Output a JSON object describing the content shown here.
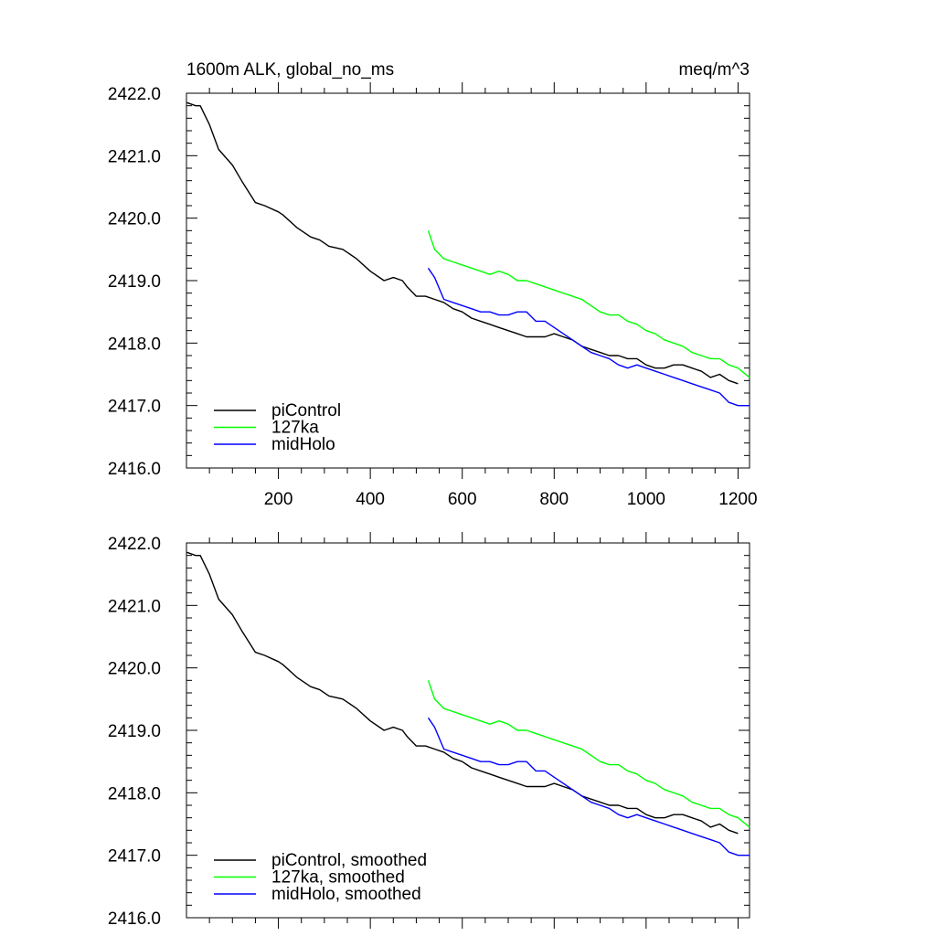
{
  "chart_data": [
    {
      "type": "line",
      "title_left": "1600m ALK, global_no_ms",
      "title_right": "meq/m^3",
      "xlim": [
        0,
        1225
      ],
      "ylim": [
        2416.0,
        2422.0
      ],
      "x_ticks": [
        200,
        400,
        600,
        800,
        1000,
        1200
      ],
      "x_tick_labels": [
        "200",
        "400",
        "600",
        "800",
        "1000",
        "1200"
      ],
      "y_ticks": [
        2416.0,
        2417.0,
        2418.0,
        2419.0,
        2420.0,
        2421.0,
        2422.0
      ],
      "y_tick_labels": [
        "2416.0",
        "2417.0",
        "2418.0",
        "2419.0",
        "2420.0",
        "2421.0",
        "2422.0"
      ],
      "legend_position": "bottom-left",
      "series": [
        {
          "name": "piControl",
          "color": "#000000",
          "x": [
            1,
            20,
            30,
            50,
            70,
            100,
            120,
            150,
            170,
            200,
            210,
            240,
            270,
            290,
            310,
            340,
            370,
            400,
            430,
            450,
            470,
            480,
            500,
            520,
            540,
            560,
            580,
            600,
            620,
            640,
            660,
            680,
            700,
            720,
            740,
            760,
            780,
            800,
            820,
            840,
            860,
            880,
            900,
            920,
            940,
            960,
            980,
            1000,
            1020,
            1040,
            1060,
            1080,
            1100,
            1120,
            1140,
            1160,
            1180,
            1200
          ],
          "values": [
            2421.85,
            2421.8,
            2421.8,
            2421.5,
            2421.1,
            2420.85,
            2420.6,
            2420.25,
            2420.2,
            2420.1,
            2420.05,
            2419.85,
            2419.7,
            2419.65,
            2419.55,
            2419.5,
            2419.35,
            2419.15,
            2419.0,
            2419.05,
            2419.0,
            2418.9,
            2418.75,
            2418.75,
            2418.7,
            2418.65,
            2418.55,
            2418.5,
            2418.4,
            2418.35,
            2418.3,
            2418.25,
            2418.2,
            2418.15,
            2418.1,
            2418.1,
            2418.1,
            2418.15,
            2418.1,
            2418.05,
            2417.95,
            2417.9,
            2417.85,
            2417.8,
            2417.8,
            2417.75,
            2417.75,
            2417.65,
            2417.6,
            2417.6,
            2417.65,
            2417.65,
            2417.6,
            2417.55,
            2417.45,
            2417.5,
            2417.4,
            2417.35
          ]
        },
        {
          "name": "127ka",
          "color": "#00FF00",
          "x": [
            526,
            540,
            560,
            580,
            600,
            620,
            640,
            660,
            680,
            700,
            720,
            740,
            760,
            780,
            800,
            820,
            840,
            860,
            880,
            900,
            920,
            940,
            960,
            980,
            1000,
            1020,
            1040,
            1060,
            1080,
            1100,
            1120,
            1140,
            1160,
            1180,
            1200,
            1225
          ],
          "values": [
            2419.8,
            2419.5,
            2419.35,
            2419.3,
            2419.25,
            2419.2,
            2419.15,
            2419.1,
            2419.15,
            2419.1,
            2419.0,
            2419.0,
            2418.95,
            2418.9,
            2418.85,
            2418.8,
            2418.75,
            2418.7,
            2418.6,
            2418.5,
            2418.45,
            2418.45,
            2418.35,
            2418.3,
            2418.2,
            2418.15,
            2418.05,
            2418.0,
            2417.95,
            2417.85,
            2417.8,
            2417.75,
            2417.75,
            2417.65,
            2417.6,
            2417.45
          ]
        },
        {
          "name": "midHolo",
          "color": "#0000FF",
          "x": [
            526,
            540,
            560,
            580,
            600,
            620,
            640,
            660,
            680,
            700,
            720,
            740,
            760,
            780,
            800,
            820,
            840,
            860,
            880,
            900,
            920,
            940,
            960,
            980,
            1000,
            1020,
            1040,
            1060,
            1080,
            1100,
            1120,
            1140,
            1160,
            1180,
            1200,
            1225
          ],
          "values": [
            2419.2,
            2419.05,
            2418.7,
            2418.65,
            2418.6,
            2418.55,
            2418.5,
            2418.5,
            2418.45,
            2418.45,
            2418.5,
            2418.5,
            2418.35,
            2418.35,
            2418.25,
            2418.15,
            2418.05,
            2417.95,
            2417.85,
            2417.8,
            2417.75,
            2417.65,
            2417.6,
            2417.65,
            2417.6,
            2417.55,
            2417.5,
            2417.45,
            2417.4,
            2417.35,
            2417.3,
            2417.25,
            2417.2,
            2417.05,
            2417.0,
            2417.0
          ]
        }
      ]
    },
    {
      "type": "line",
      "xlim": [
        0,
        1225
      ],
      "ylim": [
        2416.0,
        2422.0
      ],
      "x_ticks": [
        200,
        400,
        600,
        800,
        1000,
        1200
      ],
      "y_ticks": [
        2416.0,
        2417.0,
        2418.0,
        2419.0,
        2420.0,
        2421.0,
        2422.0
      ],
      "y_tick_labels": [
        "2416.0",
        "2417.0",
        "2418.0",
        "2419.0",
        "2420.0",
        "2421.0",
        "2422.0"
      ],
      "legend_position": "bottom-left",
      "series": [
        {
          "name": "piControl, smoothed",
          "color": "#000000",
          "x": [
            1,
            20,
            30,
            50,
            70,
            100,
            120,
            150,
            170,
            200,
            210,
            240,
            270,
            290,
            310,
            340,
            370,
            400,
            430,
            450,
            470,
            480,
            500,
            520,
            540,
            560,
            580,
            600,
            620,
            640,
            660,
            680,
            700,
            720,
            740,
            760,
            780,
            800,
            820,
            840,
            860,
            880,
            900,
            920,
            940,
            960,
            980,
            1000,
            1020,
            1040,
            1060,
            1080,
            1100,
            1120,
            1140,
            1160,
            1180,
            1200
          ],
          "values": [
            2421.85,
            2421.8,
            2421.8,
            2421.5,
            2421.1,
            2420.85,
            2420.6,
            2420.25,
            2420.2,
            2420.1,
            2420.05,
            2419.85,
            2419.7,
            2419.65,
            2419.55,
            2419.5,
            2419.35,
            2419.15,
            2419.0,
            2419.05,
            2419.0,
            2418.9,
            2418.75,
            2418.75,
            2418.7,
            2418.65,
            2418.55,
            2418.5,
            2418.4,
            2418.35,
            2418.3,
            2418.25,
            2418.2,
            2418.15,
            2418.1,
            2418.1,
            2418.1,
            2418.15,
            2418.1,
            2418.05,
            2417.95,
            2417.9,
            2417.85,
            2417.8,
            2417.8,
            2417.75,
            2417.75,
            2417.65,
            2417.6,
            2417.6,
            2417.65,
            2417.65,
            2417.6,
            2417.55,
            2417.45,
            2417.5,
            2417.4,
            2417.35
          ]
        },
        {
          "name": "127ka, smoothed",
          "color": "#00FF00",
          "x": [
            526,
            540,
            560,
            580,
            600,
            620,
            640,
            660,
            680,
            700,
            720,
            740,
            760,
            780,
            800,
            820,
            840,
            860,
            880,
            900,
            920,
            940,
            960,
            980,
            1000,
            1020,
            1040,
            1060,
            1080,
            1100,
            1120,
            1140,
            1160,
            1180,
            1200,
            1225
          ],
          "values": [
            2419.8,
            2419.5,
            2419.35,
            2419.3,
            2419.25,
            2419.2,
            2419.15,
            2419.1,
            2419.15,
            2419.1,
            2419.0,
            2419.0,
            2418.95,
            2418.9,
            2418.85,
            2418.8,
            2418.75,
            2418.7,
            2418.6,
            2418.5,
            2418.45,
            2418.45,
            2418.35,
            2418.3,
            2418.2,
            2418.15,
            2418.05,
            2418.0,
            2417.95,
            2417.85,
            2417.8,
            2417.75,
            2417.75,
            2417.65,
            2417.6,
            2417.45
          ]
        },
        {
          "name": "midHolo, smoothed",
          "color": "#0000FF",
          "x": [
            526,
            540,
            560,
            580,
            600,
            620,
            640,
            660,
            680,
            700,
            720,
            740,
            760,
            780,
            800,
            820,
            840,
            860,
            880,
            900,
            920,
            940,
            960,
            980,
            1000,
            1020,
            1040,
            1060,
            1080,
            1100,
            1120,
            1140,
            1160,
            1180,
            1200,
            1225
          ],
          "values": [
            2419.2,
            2419.05,
            2418.7,
            2418.65,
            2418.6,
            2418.55,
            2418.5,
            2418.5,
            2418.45,
            2418.45,
            2418.5,
            2418.5,
            2418.35,
            2418.35,
            2418.25,
            2418.15,
            2418.05,
            2417.95,
            2417.85,
            2417.8,
            2417.75,
            2417.65,
            2417.6,
            2417.65,
            2417.6,
            2417.55,
            2417.5,
            2417.45,
            2417.4,
            2417.35,
            2417.3,
            2417.25,
            2417.2,
            2417.05,
            2417.0,
            2417.0
          ]
        }
      ]
    }
  ]
}
